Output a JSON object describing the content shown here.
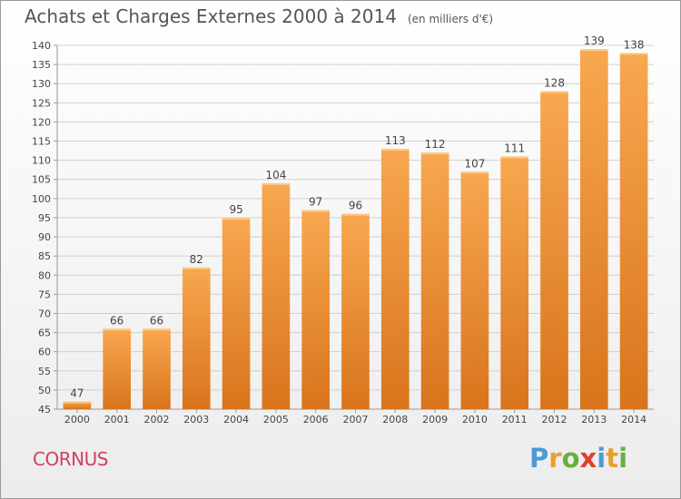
{
  "title": "Achats et Charges Externes 2000 à 2014",
  "subtitle": "(en milliers d'€)",
  "commune": "CORNUS",
  "logo_text": "Proxiti",
  "chart_data": {
    "type": "bar",
    "title": "Achats et Charges Externes 2000 à 2014",
    "subtitle": "(en milliers d'€)",
    "xlabel": "",
    "ylabel": "",
    "categories": [
      "2000",
      "2001",
      "2002",
      "2003",
      "2004",
      "2005",
      "2006",
      "2007",
      "2008",
      "2009",
      "2010",
      "2011",
      "2012",
      "2013",
      "2014"
    ],
    "values": [
      47,
      66,
      66,
      82,
      95,
      104,
      97,
      96,
      113,
      112,
      107,
      111,
      128,
      139,
      138
    ],
    "ylim": [
      45,
      140
    ],
    "yticks": [
      45,
      50,
      55,
      60,
      65,
      70,
      75,
      80,
      85,
      90,
      95,
      100,
      105,
      110,
      115,
      120,
      125,
      130,
      135,
      140
    ],
    "grid": true,
    "legend": "none",
    "colors": {
      "bar_light": "#f8a850",
      "bar_dark": "#d8741c",
      "grid": "#d0d0d0",
      "text": "#444444"
    }
  }
}
